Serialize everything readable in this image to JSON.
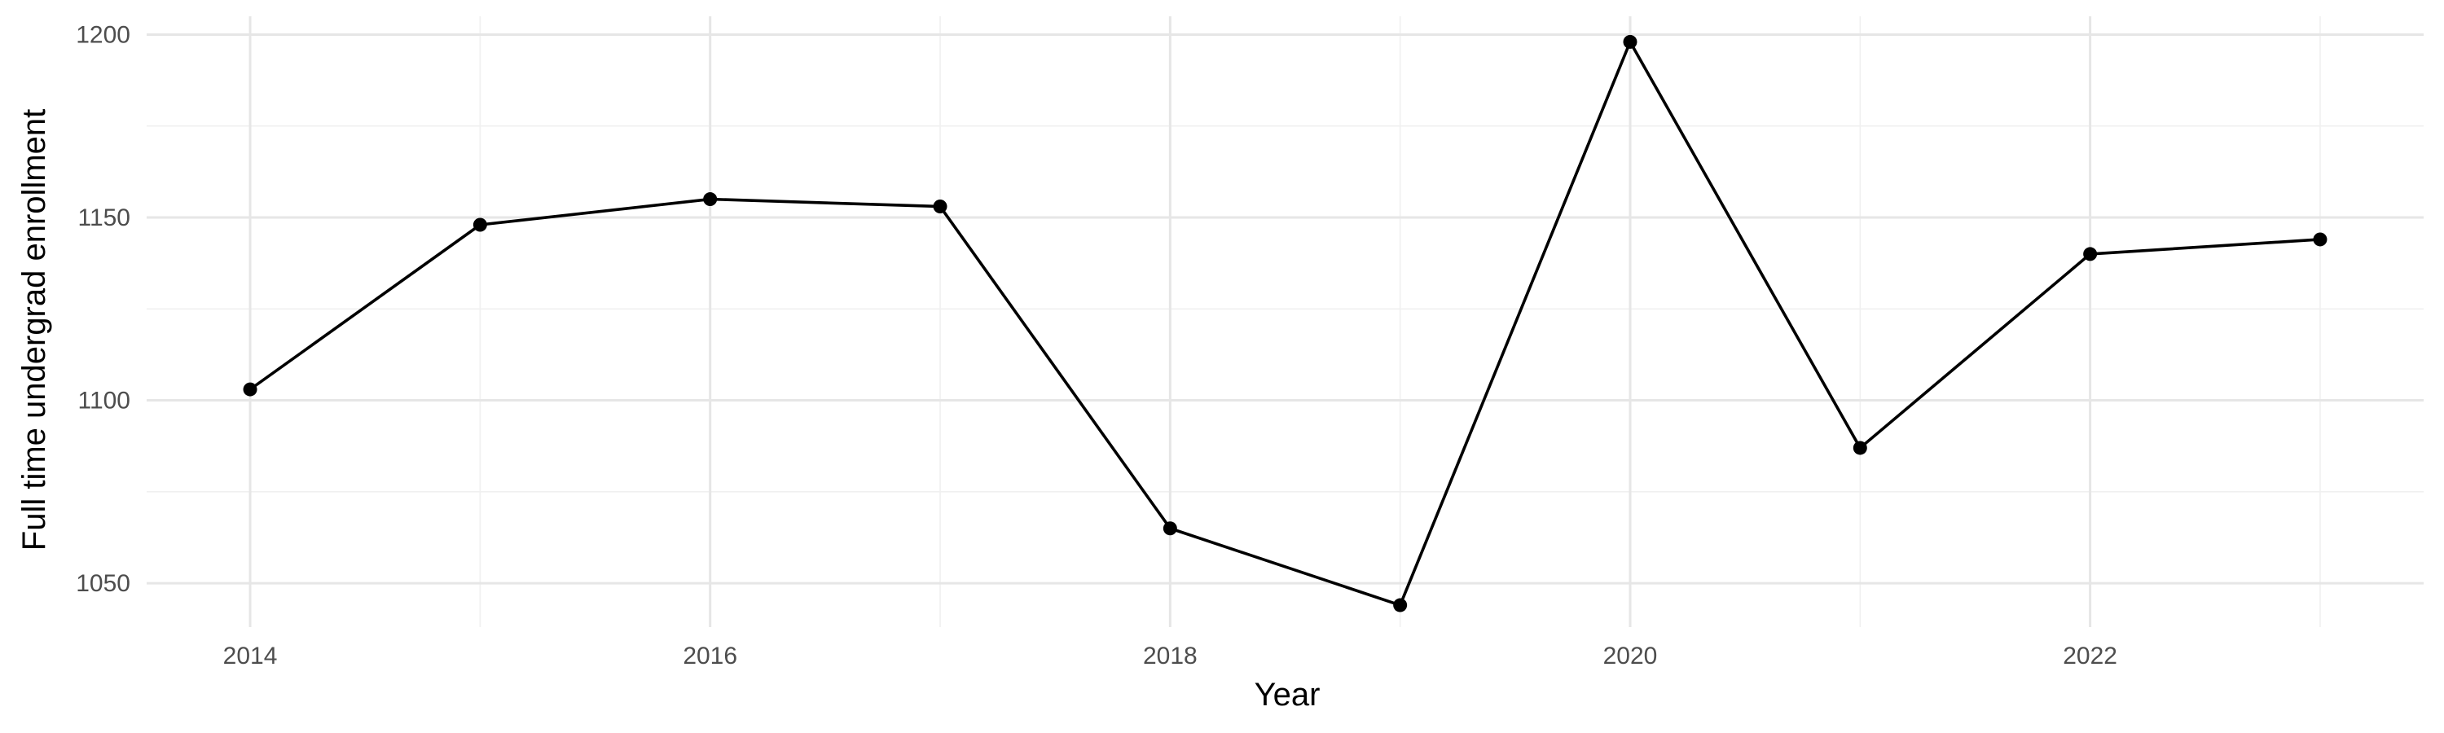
{
  "chart_data": {
    "type": "line",
    "xlabel": "Year",
    "ylabel": "Full time undergrad enrollment",
    "x": [
      2014,
      2015,
      2016,
      2017,
      2018,
      2019,
      2020,
      2021,
      2022,
      2023
    ],
    "series": [
      {
        "values": [
          1103,
          1148,
          1155,
          1153,
          1065,
          1044,
          1198,
          1087,
          1140,
          1144
        ]
      }
    ],
    "xlim": [
      2013.55,
      2023.45
    ],
    "ylim": [
      1038,
      1205
    ],
    "x_ticks": [
      2014,
      2016,
      2018,
      2020,
      2022
    ],
    "y_ticks": [
      1050,
      1100,
      1150,
      1200
    ],
    "grid": true,
    "legend": "none",
    "line_color": "#000000",
    "point_color": "#000000",
    "grid_color": "#e6e6e6"
  }
}
